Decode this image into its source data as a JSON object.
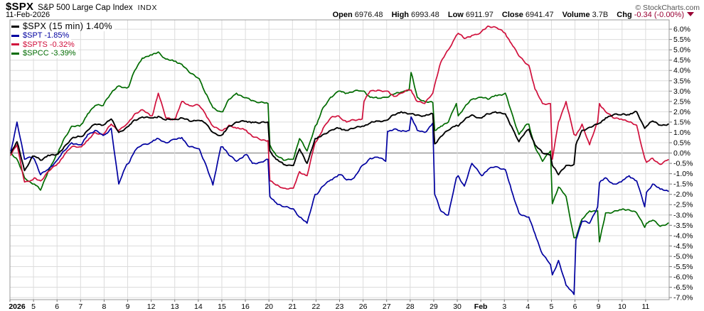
{
  "header": {
    "symbol": "$SPX",
    "name": "S&P 500 Large Cap Index",
    "exchange": "INDX",
    "date": "11-Feb-2026",
    "copyright": "© StockCharts.com",
    "quote": {
      "open_label": "Open",
      "open": "6976.48",
      "high_label": "High",
      "high": "6993.48",
      "low_label": "Low",
      "low": "6911.97",
      "close_label": "Close",
      "close": "6941.47",
      "volume_label": "Volume",
      "volume": "3.7B",
      "chg_label": "Chg",
      "chg": "-0.34 (-0.00%)",
      "chg_direction": "down",
      "chg_color": "#990033"
    }
  },
  "legend": [
    {
      "label": "$SPX (15 min) 1.40%",
      "color": "#000000"
    },
    {
      "label": "$SPT -1.85%",
      "color": "#0000a0"
    },
    {
      "label": "$SPTS -0.32%",
      "color": "#d0103c"
    },
    {
      "label": "$SPCC -3.39%",
      "color": "#006b00"
    }
  ],
  "chart_data": {
    "type": "line",
    "title": "$SPX (15 min) percent-change comparison",
    "x_labels": [
      "2026",
      "5",
      "6",
      "7",
      "8",
      "9",
      "12",
      "13",
      "14",
      "15",
      "16",
      "20",
      "21",
      "22",
      "23",
      "26",
      "27",
      "28",
      "29",
      "30",
      "Feb",
      "3",
      "4",
      "5",
      "6",
      "9",
      "10",
      "11"
    ],
    "bold_x_labels": [
      "2026",
      "Feb"
    ],
    "ylim": [
      -7.0,
      6.0
    ],
    "y_tick_step": 0.5,
    "y_unit": "%",
    "y_tick_labels": [
      "6.0%",
      "5.5%",
      "5.0%",
      "4.5%",
      "4.0%",
      "3.5%",
      "3.0%",
      "2.5%",
      "2.0%",
      "1.5%",
      "1.0%",
      "0.5%",
      "0.0%",
      "-0.5%",
      "-1.0%",
      "-1.5%",
      "-2.0%",
      "-2.5%",
      "-3.0%",
      "-3.5%",
      "-4.0%",
      "-4.5%",
      "-5.0%",
      "-5.5%",
      "-6.0%",
      "-6.5%",
      "-7.0%"
    ],
    "points_per_day": 4,
    "grid_color": "#dcdcdc",
    "zero_line_color": "#777777",
    "border_color": "#999999",
    "series": [
      {
        "name": "$SPX",
        "color": "#000000",
        "final": "1.40%",
        "values": [
          0.0,
          0.55,
          -0.85,
          -0.15,
          -0.15,
          -0.35,
          -0.1,
          -0.08,
          -0.05,
          0.3,
          0.7,
          0.8,
          0.8,
          1.1,
          1.4,
          1.35,
          1.4,
          1.65,
          1.0,
          1.25,
          1.3,
          1.6,
          1.75,
          1.7,
          1.7,
          1.78,
          1.6,
          1.63,
          1.63,
          1.7,
          1.55,
          1.58,
          1.58,
          1.45,
          1.0,
          0.85,
          0.9,
          1.3,
          1.5,
          1.54,
          1.54,
          1.5,
          1.45,
          1.5,
          0.1,
          -0.3,
          -0.55,
          -0.6,
          -0.6,
          0.2,
          -0.5,
          0.7,
          0.7,
          0.9,
          1.1,
          1.2,
          1.2,
          1.1,
          1.2,
          1.3,
          1.3,
          1.45,
          1.55,
          1.58,
          1.6,
          1.85,
          2.0,
          1.9,
          1.9,
          1.85,
          1.8,
          1.9,
          0.45,
          0.8,
          1.1,
          1.35,
          1.3,
          1.6,
          1.85,
          1.7,
          1.7,
          1.9,
          2.0,
          1.9,
          1.9,
          1.3,
          0.55,
          1.1,
          1.15,
          0.4,
          0.0,
          -0.1,
          -0.6,
          -1.05,
          -0.6,
          -0.55,
          0.4,
          1.1,
          1.25,
          1.4,
          1.45,
          1.7,
          1.85,
          1.85,
          1.9,
          1.85,
          2.0,
          1.2,
          1.3,
          1.55,
          1.35,
          1.4
        ]
      },
      {
        "name": "$SPT",
        "color": "#0000a0",
        "final": "-1.85%",
        "values": [
          0.1,
          1.5,
          -0.3,
          -0.2,
          -0.3,
          -1.05,
          -0.8,
          -0.4,
          -0.3,
          0.1,
          0.5,
          0.4,
          0.4,
          0.9,
          1.1,
          0.85,
          0.9,
          1.2,
          -1.5,
          -0.55,
          -0.5,
          0.1,
          0.4,
          0.5,
          0.55,
          0.7,
          0.5,
          0.67,
          0.67,
          0.75,
          0.3,
          0.22,
          0.2,
          -0.5,
          -1.55,
          0.3,
          0.3,
          -0.1,
          -0.4,
          -0.1,
          -0.07,
          -0.5,
          -0.45,
          -0.3,
          -2.1,
          -2.4,
          -2.6,
          -2.7,
          -2.7,
          -3.1,
          -3.4,
          -2.0,
          -2.0,
          -1.6,
          -1.3,
          -1.05,
          -1.05,
          -1.3,
          -1.2,
          -0.6,
          -0.55,
          -0.25,
          -0.2,
          -0.4,
          1.05,
          1.15,
          1.05,
          1.1,
          1.75,
          1.1,
          1.0,
          1.45,
          -2.0,
          -2.8,
          -3.0,
          -1.2,
          -1.1,
          -1.6,
          -0.5,
          -1.0,
          -1.1,
          -0.8,
          -0.66,
          -0.77,
          -0.8,
          -1.8,
          -2.9,
          -3.1,
          -3.1,
          -3.9,
          -4.9,
          -5.4,
          -5.9,
          -5.2,
          -6.4,
          -6.85,
          -4.2,
          -3.3,
          -3.4,
          -2.6,
          -1.45,
          -1.2,
          -1.5,
          -1.4,
          -1.3,
          -1.1,
          -1.35,
          -2.6,
          -1.9,
          -1.5,
          -1.75,
          -1.85
        ]
      },
      {
        "name": "$SPTS",
        "color": "#d0103c",
        "final": "-0.32%",
        "values": [
          -0.1,
          0.4,
          -1.4,
          -1.3,
          -1.2,
          -1.35,
          -0.9,
          -0.6,
          -0.5,
          -0.1,
          0.3,
          0.3,
          0.3,
          0.6,
          1.0,
          0.9,
          1.0,
          1.4,
          1.1,
          1.4,
          1.5,
          1.9,
          2.1,
          1.8,
          1.8,
          2.9,
          1.7,
          1.63,
          1.7,
          2.5,
          2.3,
          2.35,
          2.3,
          1.9,
          1.3,
          1.1,
          1.1,
          1.35,
          1.2,
          1.13,
          1.1,
          0.8,
          0.65,
          0.6,
          -1.35,
          -1.55,
          -1.7,
          -1.7,
          -1.7,
          -0.9,
          -1.1,
          0.5,
          0.6,
          1.2,
          1.7,
          1.8,
          1.7,
          1.5,
          1.6,
          1.65,
          2.5,
          3.0,
          3.05,
          3.0,
          3.0,
          2.75,
          2.9,
          3.05,
          3.05,
          2.5,
          2.4,
          2.9,
          3.3,
          4.4,
          5.0,
          5.7,
          5.8,
          5.55,
          5.7,
          5.8,
          5.9,
          6.15,
          6.1,
          5.85,
          5.8,
          5.3,
          4.7,
          4.3,
          4.25,
          3.1,
          2.4,
          2.4,
          -0.3,
          1.5,
          2.5,
          0.9,
          0.85,
          1.4,
          0.4,
          1.5,
          2.4,
          2.0,
          1.7,
          1.65,
          1.6,
          1.5,
          1.35,
          -0.25,
          -0.45,
          -0.25,
          -0.55,
          -0.32
        ]
      },
      {
        "name": "$SPCC",
        "color": "#006b00",
        "final": "-3.39%",
        "values": [
          0.0,
          -0.3,
          -1.2,
          -1.5,
          -1.5,
          -1.8,
          -0.9,
          -0.1,
          0.0,
          0.7,
          1.3,
          1.3,
          1.4,
          1.9,
          2.3,
          2.3,
          2.5,
          2.9,
          3.25,
          3.15,
          3.2,
          4.0,
          4.6,
          4.75,
          4.75,
          4.9,
          4.55,
          4.45,
          4.45,
          4.3,
          3.9,
          3.65,
          3.6,
          2.9,
          2.2,
          2.0,
          2.0,
          2.6,
          2.9,
          2.68,
          2.68,
          2.55,
          2.45,
          2.4,
          0.4,
          -0.1,
          -0.35,
          -0.3,
          -0.3,
          0.7,
          0.1,
          1.3,
          1.4,
          2.2,
          2.7,
          3.0,
          3.0,
          2.9,
          3.0,
          3.0,
          3.0,
          2.7,
          2.65,
          2.7,
          2.7,
          2.85,
          2.95,
          3.1,
          3.9,
          2.7,
          2.5,
          2.45,
          1.1,
          1.3,
          1.5,
          2.4,
          1.8,
          2.2,
          2.6,
          2.7,
          2.7,
          2.6,
          2.8,
          2.85,
          2.9,
          2.0,
          0.9,
          1.4,
          1.4,
          0.3,
          -0.4,
          0.1,
          -2.45,
          -1.65,
          -2.1,
          -4.1,
          -4.1,
          -3.2,
          -2.8,
          -2.8,
          -4.3,
          -2.9,
          -2.85,
          -2.75,
          -2.7,
          -2.75,
          -2.9,
          -3.6,
          -3.4,
          -3.25,
          -3.55,
          -3.39
        ]
      }
    ]
  }
}
